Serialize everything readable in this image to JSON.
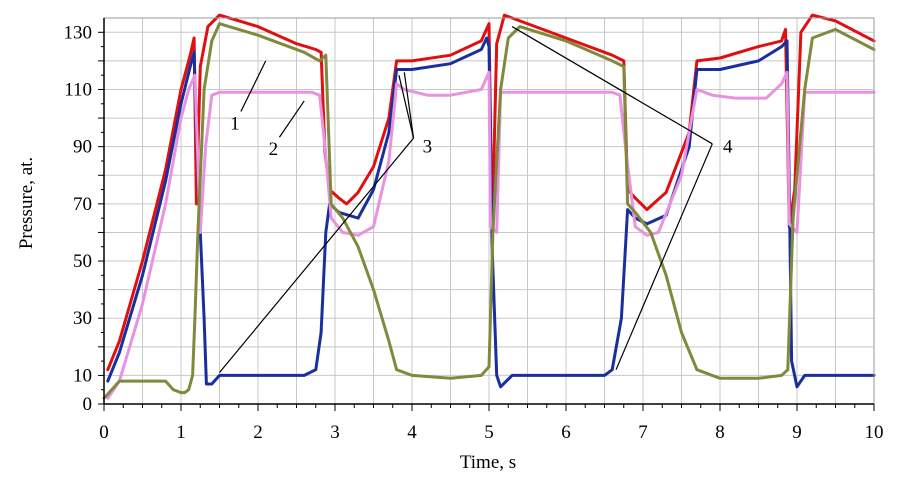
{
  "chart_data": {
    "type": "line",
    "title": "",
    "xlabel": "Time, s",
    "ylabel": "Pressure, at.",
    "xlim": [
      0,
      10
    ],
    "ylim": [
      0,
      135
    ],
    "grid": true,
    "x_ticks": [
      0,
      1,
      2,
      3,
      4,
      5,
      6,
      7,
      8,
      9,
      10
    ],
    "y_ticks": [
      0,
      10,
      30,
      50,
      70,
      90,
      110,
      130
    ],
    "series": [
      {
        "color": "#e01010",
        "x": [
          0.05,
          0.2,
          0.5,
          0.8,
          1.0,
          1.12,
          1.17,
          1.2,
          1.25,
          1.35,
          1.5,
          2.0,
          2.5,
          2.75,
          2.82,
          2.87,
          2.93,
          3.05,
          3.15,
          3.3,
          3.5,
          3.7,
          3.8,
          4.0,
          4.5,
          4.9,
          5.0,
          5.04,
          5.1,
          5.2,
          5.4,
          6.0,
          6.6,
          6.75,
          6.8,
          6.9,
          7.05,
          7.3,
          7.6,
          7.7,
          8.0,
          8.5,
          8.8,
          8.85,
          8.9,
          8.97,
          9.05,
          9.2,
          9.5,
          10.0
        ],
        "y": [
          12,
          22,
          50,
          82,
          110,
          122,
          128,
          70,
          118,
          132,
          136,
          132,
          126,
          124,
          123,
          88,
          75,
          72,
          70,
          74,
          83,
          100,
          120,
          120,
          122,
          127,
          133,
          60,
          126,
          136,
          134,
          128,
          122,
          120,
          75,
          72,
          68,
          74,
          95,
          120,
          121,
          125,
          127,
          131,
          62,
          75,
          130,
          136,
          134,
          127
        ]
      },
      {
        "color": "#1a2f9e",
        "x": [
          0.05,
          0.2,
          0.5,
          0.8,
          1.0,
          1.12,
          1.17,
          1.2,
          1.25,
          1.3,
          1.33,
          1.4,
          1.5,
          2.0,
          2.6,
          2.75,
          2.82,
          2.88,
          2.93,
          3.05,
          3.3,
          3.5,
          3.7,
          3.8,
          4.0,
          4.5,
          4.9,
          4.97,
          5.0,
          5.04,
          5.1,
          5.15,
          5.3,
          6.0,
          6.5,
          6.6,
          6.72,
          6.8,
          6.9,
          7.05,
          7.3,
          7.6,
          7.7,
          8.0,
          8.5,
          8.8,
          8.87,
          8.9,
          8.93,
          9.0,
          9.1,
          10.0
        ],
        "y": [
          8,
          18,
          45,
          78,
          105,
          118,
          123,
          95,
          60,
          30,
          7,
          7,
          10,
          10,
          10,
          12,
          25,
          60,
          70,
          67,
          65,
          75,
          95,
          117,
          117,
          119,
          124,
          128,
          125,
          55,
          10,
          6,
          10,
          10,
          10,
          12,
          30,
          68,
          65,
          63,
          66,
          90,
          117,
          117,
          120,
          125,
          127,
          75,
          15,
          6,
          10,
          10
        ]
      },
      {
        "color": "#e892e0",
        "x": [
          0.05,
          0.2,
          0.5,
          0.8,
          1.0,
          1.1,
          1.18,
          1.25,
          1.32,
          1.4,
          1.5,
          2.0,
          2.7,
          2.8,
          2.87,
          2.95,
          3.1,
          3.3,
          3.5,
          3.7,
          3.8,
          3.9,
          4.2,
          4.5,
          4.9,
          5.0,
          5.02,
          5.1,
          5.15,
          5.3,
          6.0,
          6.6,
          6.7,
          6.78,
          6.9,
          7.05,
          7.2,
          7.5,
          7.7,
          7.9,
          8.2,
          8.6,
          8.8,
          8.87,
          8.9,
          9.0,
          9.1,
          10.0
        ],
        "y": [
          2,
          8,
          35,
          70,
          100,
          110,
          115,
          60,
          90,
          108,
          109,
          109,
          109,
          108,
          90,
          65,
          60,
          59,
          62,
          85,
          112,
          110,
          108,
          108,
          110,
          116,
          62,
          60,
          109,
          109,
          109,
          109,
          108,
          88,
          62,
          59,
          60,
          80,
          110,
          108,
          107,
          107,
          112,
          116,
          63,
          60,
          109,
          109
        ]
      },
      {
        "color": "#7f8a3d",
        "x": [
          0.0,
          0.1,
          0.2,
          0.4,
          0.8,
          0.9,
          1.0,
          1.05,
          1.1,
          1.15,
          1.18,
          1.22,
          1.3,
          1.4,
          1.5,
          2.0,
          2.6,
          2.8,
          2.88,
          2.95,
          3.1,
          3.3,
          3.5,
          3.7,
          3.8,
          4.0,
          4.5,
          4.9,
          5.0,
          5.05,
          5.15,
          5.25,
          5.4,
          6.0,
          6.6,
          6.75,
          6.8,
          6.9,
          7.1,
          7.3,
          7.5,
          7.7,
          8.0,
          8.5,
          8.8,
          8.88,
          8.95,
          9.1,
          9.2,
          9.5,
          10.0
        ],
        "y": [
          2,
          5,
          8,
          8,
          8,
          5,
          4,
          4,
          5,
          10,
          30,
          60,
          110,
          127,
          133,
          129,
          123,
          120,
          122,
          70,
          65,
          55,
          40,
          22,
          12,
          10,
          9,
          10,
          13,
          60,
          110,
          128,
          132,
          127,
          120,
          118,
          70,
          67,
          60,
          45,
          25,
          12,
          9,
          9,
          10,
          12,
          65,
          110,
          128,
          131,
          124
        ]
      }
    ],
    "annotations": [
      {
        "label": "1",
        "text_at": [
          1.7,
          96
        ],
        "points_to": [
          2.1,
          120
        ]
      },
      {
        "label": "2",
        "text_at": [
          2.2,
          87
        ],
        "points_to": [
          2.6,
          106
        ]
      },
      {
        "label": "3",
        "text_at": [
          4.2,
          88
        ],
        "points_to": [
          [
            1.5,
            11
          ],
          [
            3.83,
            115
          ],
          [
            3.9,
            116
          ]
        ],
        "junction": [
          4.02,
          93
        ]
      },
      {
        "label": "4",
        "text_at": [
          8.1,
          88
        ],
        "points_to": [
          [
            5.3,
            132
          ],
          [
            6.65,
            12
          ]
        ],
        "junction": [
          7.9,
          91
        ]
      }
    ]
  }
}
